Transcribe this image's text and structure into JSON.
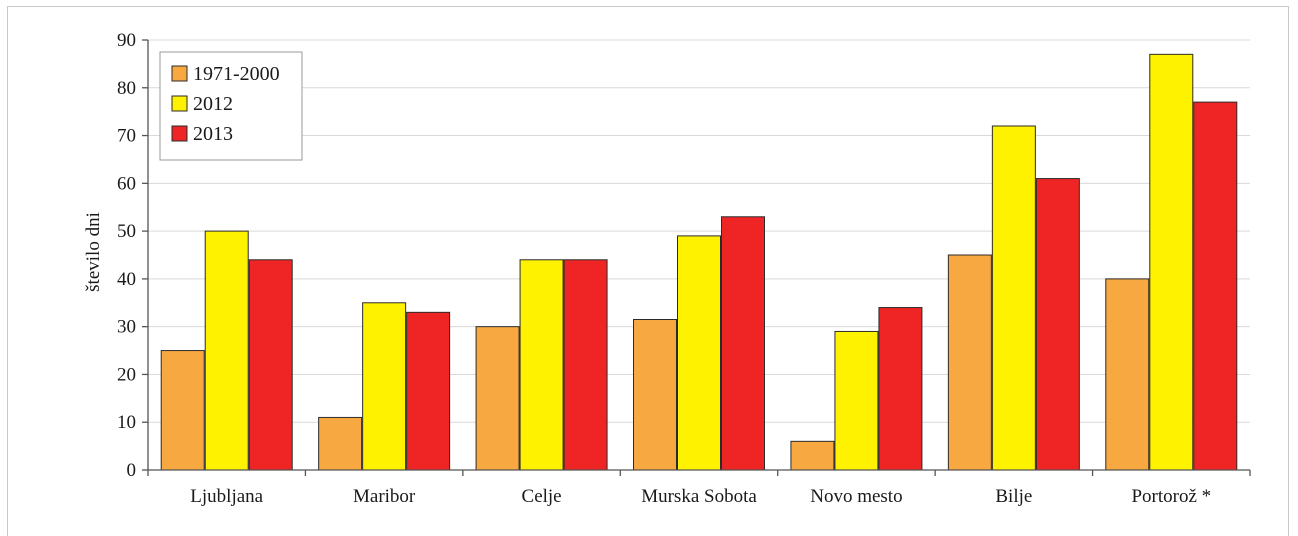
{
  "chart_data": {
    "type": "bar",
    "ylabel": "število dni",
    "xlabel": "",
    "ylim": [
      0,
      90
    ],
    "yticks": [
      0,
      10,
      20,
      30,
      40,
      50,
      60,
      70,
      80,
      90
    ],
    "grid": true,
    "legend_position": "top-left",
    "categories": [
      "Ljubljana",
      "Maribor",
      "Celje",
      "Murska Sobota",
      "Novo mesto",
      "Bilje",
      "Portorož *"
    ],
    "series": [
      {
        "name": "1971-2000",
        "color": "#f7a840",
        "values": [
          25,
          11,
          30,
          31.5,
          6,
          45,
          40
        ]
      },
      {
        "name": "2012",
        "color": "#fff200",
        "values": [
          50,
          35,
          44,
          49,
          29,
          72,
          87
        ]
      },
      {
        "name": "2013",
        "color": "#ee2524",
        "values": [
          44,
          33,
          44,
          53,
          34,
          61,
          77
        ]
      }
    ]
  }
}
